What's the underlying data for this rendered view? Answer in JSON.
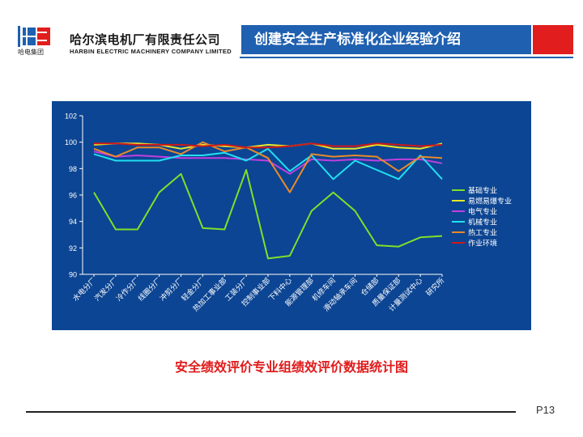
{
  "header": {
    "company_cn": "哈尔滨电机厂有限责任公司",
    "company_en": "HARBIN ELECTRIC MACHINERY COMPANY LIMITED",
    "logo_text": "哈电集团",
    "title": "创建安全生产标准化企业经验介绍"
  },
  "colors": {
    "panel": "#0c4593",
    "title_band": "#1f60b0",
    "accent_red": "#e21d1d"
  },
  "chart_data": {
    "type": "line",
    "title": "",
    "xlabel": "",
    "ylabel": "",
    "ylim": [
      90,
      102
    ],
    "yticks": [
      90,
      92,
      94,
      96,
      98,
      100,
      102
    ],
    "categories": [
      "水电分厂",
      "汽发分厂",
      "冷作分厂",
      "线圈分厂",
      "冲剪分厂",
      "轻金分厂",
      "热加工事业部",
      "工装分厂",
      "控制事业部",
      "下料中心",
      "能源管理部",
      "机修车间",
      "滑动轴承车间",
      "仓储部",
      "质量保证部",
      "计量测试中心",
      "研究所"
    ],
    "legend_position": "right",
    "series": [
      {
        "name": "基础专业",
        "color": "#7fe02a",
        "values": [
          96.2,
          93.4,
          93.4,
          96.2,
          97.6,
          93.5,
          93.4,
          97.9,
          91.2,
          91.4,
          94.8,
          96.2,
          94.8,
          92.2,
          92.1,
          92.8,
          92.9
        ]
      },
      {
        "name": "易燃易爆专业",
        "color": "#e8e82a",
        "values": [
          99.8,
          99.9,
          99.9,
          99.8,
          99.5,
          99.8,
          99.7,
          99.6,
          99.8,
          99.7,
          99.9,
          99.5,
          99.5,
          99.8,
          99.6,
          99.5,
          99.9
        ]
      },
      {
        "name": "电气专业",
        "color": "#c040e0",
        "values": [
          99.3,
          98.9,
          99.0,
          98.9,
          98.8,
          98.8,
          98.8,
          98.7,
          98.6,
          97.6,
          98.7,
          98.6,
          98.7,
          98.6,
          98.7,
          98.7,
          98.4
        ]
      },
      {
        "name": "机械专业",
        "color": "#20e0f0",
        "values": [
          99.1,
          98.6,
          98.6,
          98.6,
          99.0,
          99.0,
          99.2,
          98.6,
          99.5,
          97.8,
          99.0,
          97.2,
          98.6,
          97.9,
          97.2,
          99.0,
          97.2
        ]
      },
      {
        "name": "热工专业",
        "color": "#e88a2a",
        "values": [
          99.5,
          98.9,
          99.6,
          99.6,
          99.1,
          100.0,
          99.3,
          99.6,
          98.8,
          96.2,
          99.1,
          98.9,
          99.0,
          98.9,
          97.8,
          98.9,
          98.8
        ]
      },
      {
        "name": "作业环境",
        "color": "#d01818",
        "values": [
          99.9,
          99.9,
          99.8,
          99.8,
          99.8,
          99.7,
          99.8,
          99.6,
          99.6,
          99.7,
          99.9,
          99.7,
          99.7,
          99.9,
          99.8,
          99.7,
          99.8
        ]
      }
    ]
  },
  "caption": "安全绩效评价专业组绩效评价数据统计图",
  "page_number": "P13"
}
